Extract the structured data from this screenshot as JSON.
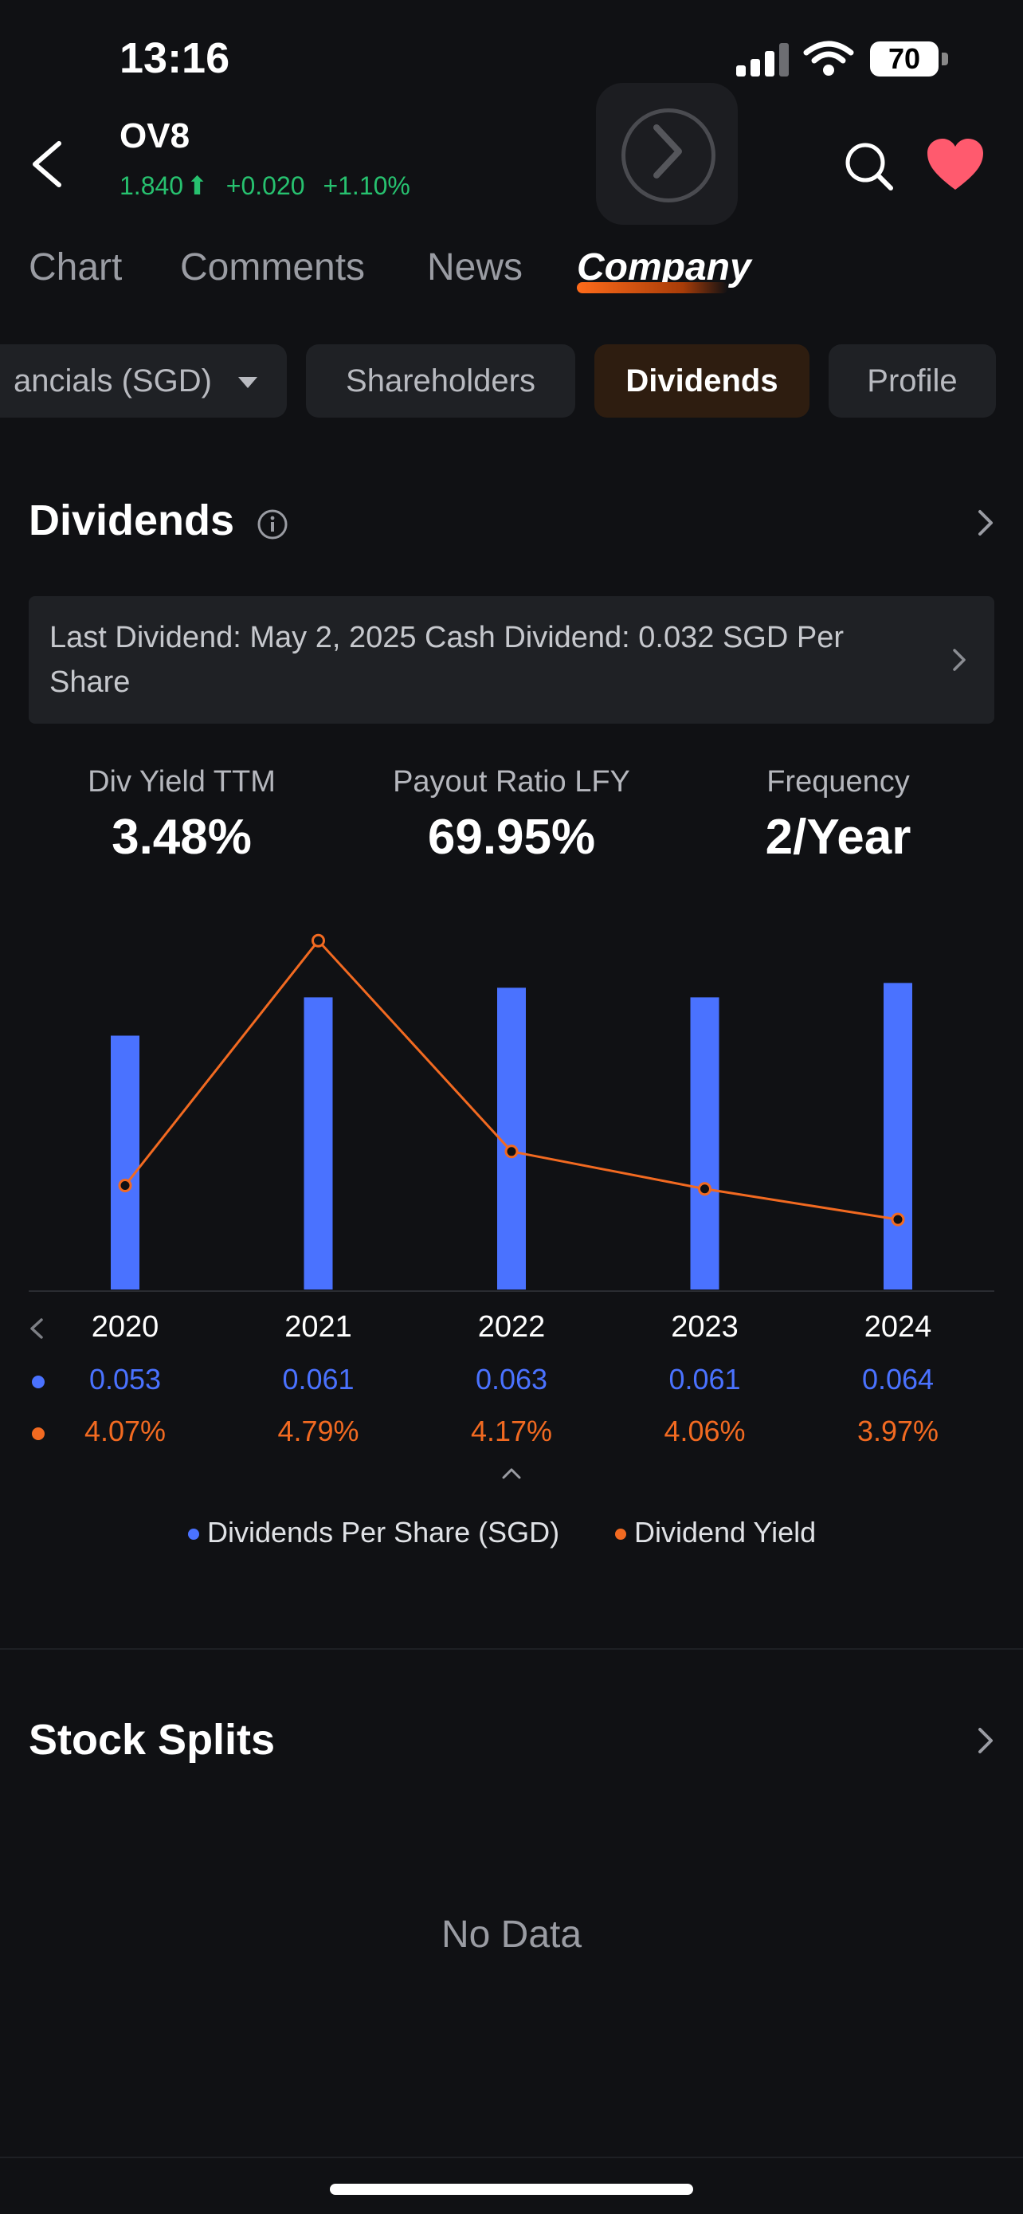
{
  "status_bar": {
    "time": "13:16",
    "battery": "70"
  },
  "header": {
    "ticker": "OV8",
    "price": "1.840",
    "change": "+0.020",
    "change_pct": "+1.10%",
    "up_color": "#27c16f",
    "accent_heart": "#ff5a6e"
  },
  "tabs": [
    {
      "label": "Chart"
    },
    {
      "label": "Comments"
    },
    {
      "label": "News"
    },
    {
      "label": "Company",
      "active": true
    }
  ],
  "subtabs": [
    {
      "label": "ancials (SGD)"
    },
    {
      "label": "Shareholders"
    },
    {
      "label": "Dividends",
      "active": true
    },
    {
      "label": "Profile"
    }
  ],
  "dividends": {
    "title": "Dividends",
    "banner": "Last Dividend: May 2, 2025 Cash Dividend: 0.032 SGD Per Share",
    "stats": [
      {
        "label": "Div Yield TTM",
        "value": "3.48%"
      },
      {
        "label": "Payout Ratio LFY",
        "value": "69.95%"
      },
      {
        "label": "Frequency",
        "value": "2/Year"
      }
    ]
  },
  "chart_data": {
    "type": "bar",
    "categories": [
      "2020",
      "2021",
      "2022",
      "2023",
      "2024"
    ],
    "series": [
      {
        "name": "Dividends Per Share (SGD)",
        "type": "bar",
        "values": [
          0.053,
          0.061,
          0.063,
          0.061,
          0.064
        ],
        "labels": [
          "0.053",
          "0.061",
          "0.063",
          "0.061",
          "0.064"
        ],
        "color": "#4a72ff"
      },
      {
        "name": "Dividend Yield",
        "type": "line",
        "values": [
          4.07,
          4.79,
          4.17,
          4.06,
          3.97
        ],
        "labels": [
          "4.07%",
          "4.79%",
          "4.17%",
          "4.06%",
          "3.97%"
        ],
        "color": "#f26a21"
      }
    ]
  },
  "stock_splits": {
    "title": "Stock Splits",
    "empty": "No Data"
  }
}
